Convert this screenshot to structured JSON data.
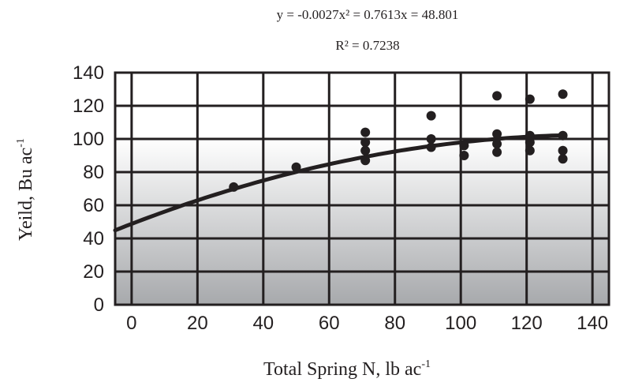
{
  "chart_data": {
    "type": "scatter",
    "equation": "y = -0.0027x² = 0.7613x = 48.801",
    "r_squared": "R² = 0.7238",
    "xlabel_main": "Total Spring N, lb ac",
    "xlabel_sup": "-1",
    "ylabel_main": "Yeild, Bu ac",
    "ylabel_sup": "-1",
    "xlim": [
      -5,
      145
    ],
    "ylim": [
      0,
      140
    ],
    "x_ticks": [
      0,
      20,
      40,
      60,
      80,
      100,
      120,
      140
    ],
    "y_ticks": [
      0,
      20,
      40,
      60,
      80,
      100,
      120,
      140
    ],
    "grid": true,
    "background": "vertical gradient white to gray",
    "colors": {
      "ink": "#231f20",
      "grad_top": "#ffffff",
      "grad_bottom": "#a7a9ac"
    },
    "points": [
      {
        "x": 31,
        "y": 71
      },
      {
        "x": 50,
        "y": 83
      },
      {
        "x": 71,
        "y": 104
      },
      {
        "x": 71,
        "y": 98
      },
      {
        "x": 71,
        "y": 93
      },
      {
        "x": 71,
        "y": 87
      },
      {
        "x": 91,
        "y": 114
      },
      {
        "x": 91,
        "y": 100
      },
      {
        "x": 91,
        "y": 95
      },
      {
        "x": 101,
        "y": 96
      },
      {
        "x": 101,
        "y": 90
      },
      {
        "x": 111,
        "y": 126
      },
      {
        "x": 111,
        "y": 103
      },
      {
        "x": 111,
        "y": 97
      },
      {
        "x": 111,
        "y": 92
      },
      {
        "x": 121,
        "y": 124
      },
      {
        "x": 121,
        "y": 102
      },
      {
        "x": 121,
        "y": 98
      },
      {
        "x": 121,
        "y": 93
      },
      {
        "x": 131,
        "y": 127
      },
      {
        "x": 131,
        "y": 102
      },
      {
        "x": 131,
        "y": 93
      },
      {
        "x": 131,
        "y": 88
      }
    ],
    "fit": {
      "type": "quadratic",
      "a": -0.0027,
      "b": 0.7613,
      "c": 48.801,
      "x_range": [
        -5,
        131
      ]
    }
  }
}
